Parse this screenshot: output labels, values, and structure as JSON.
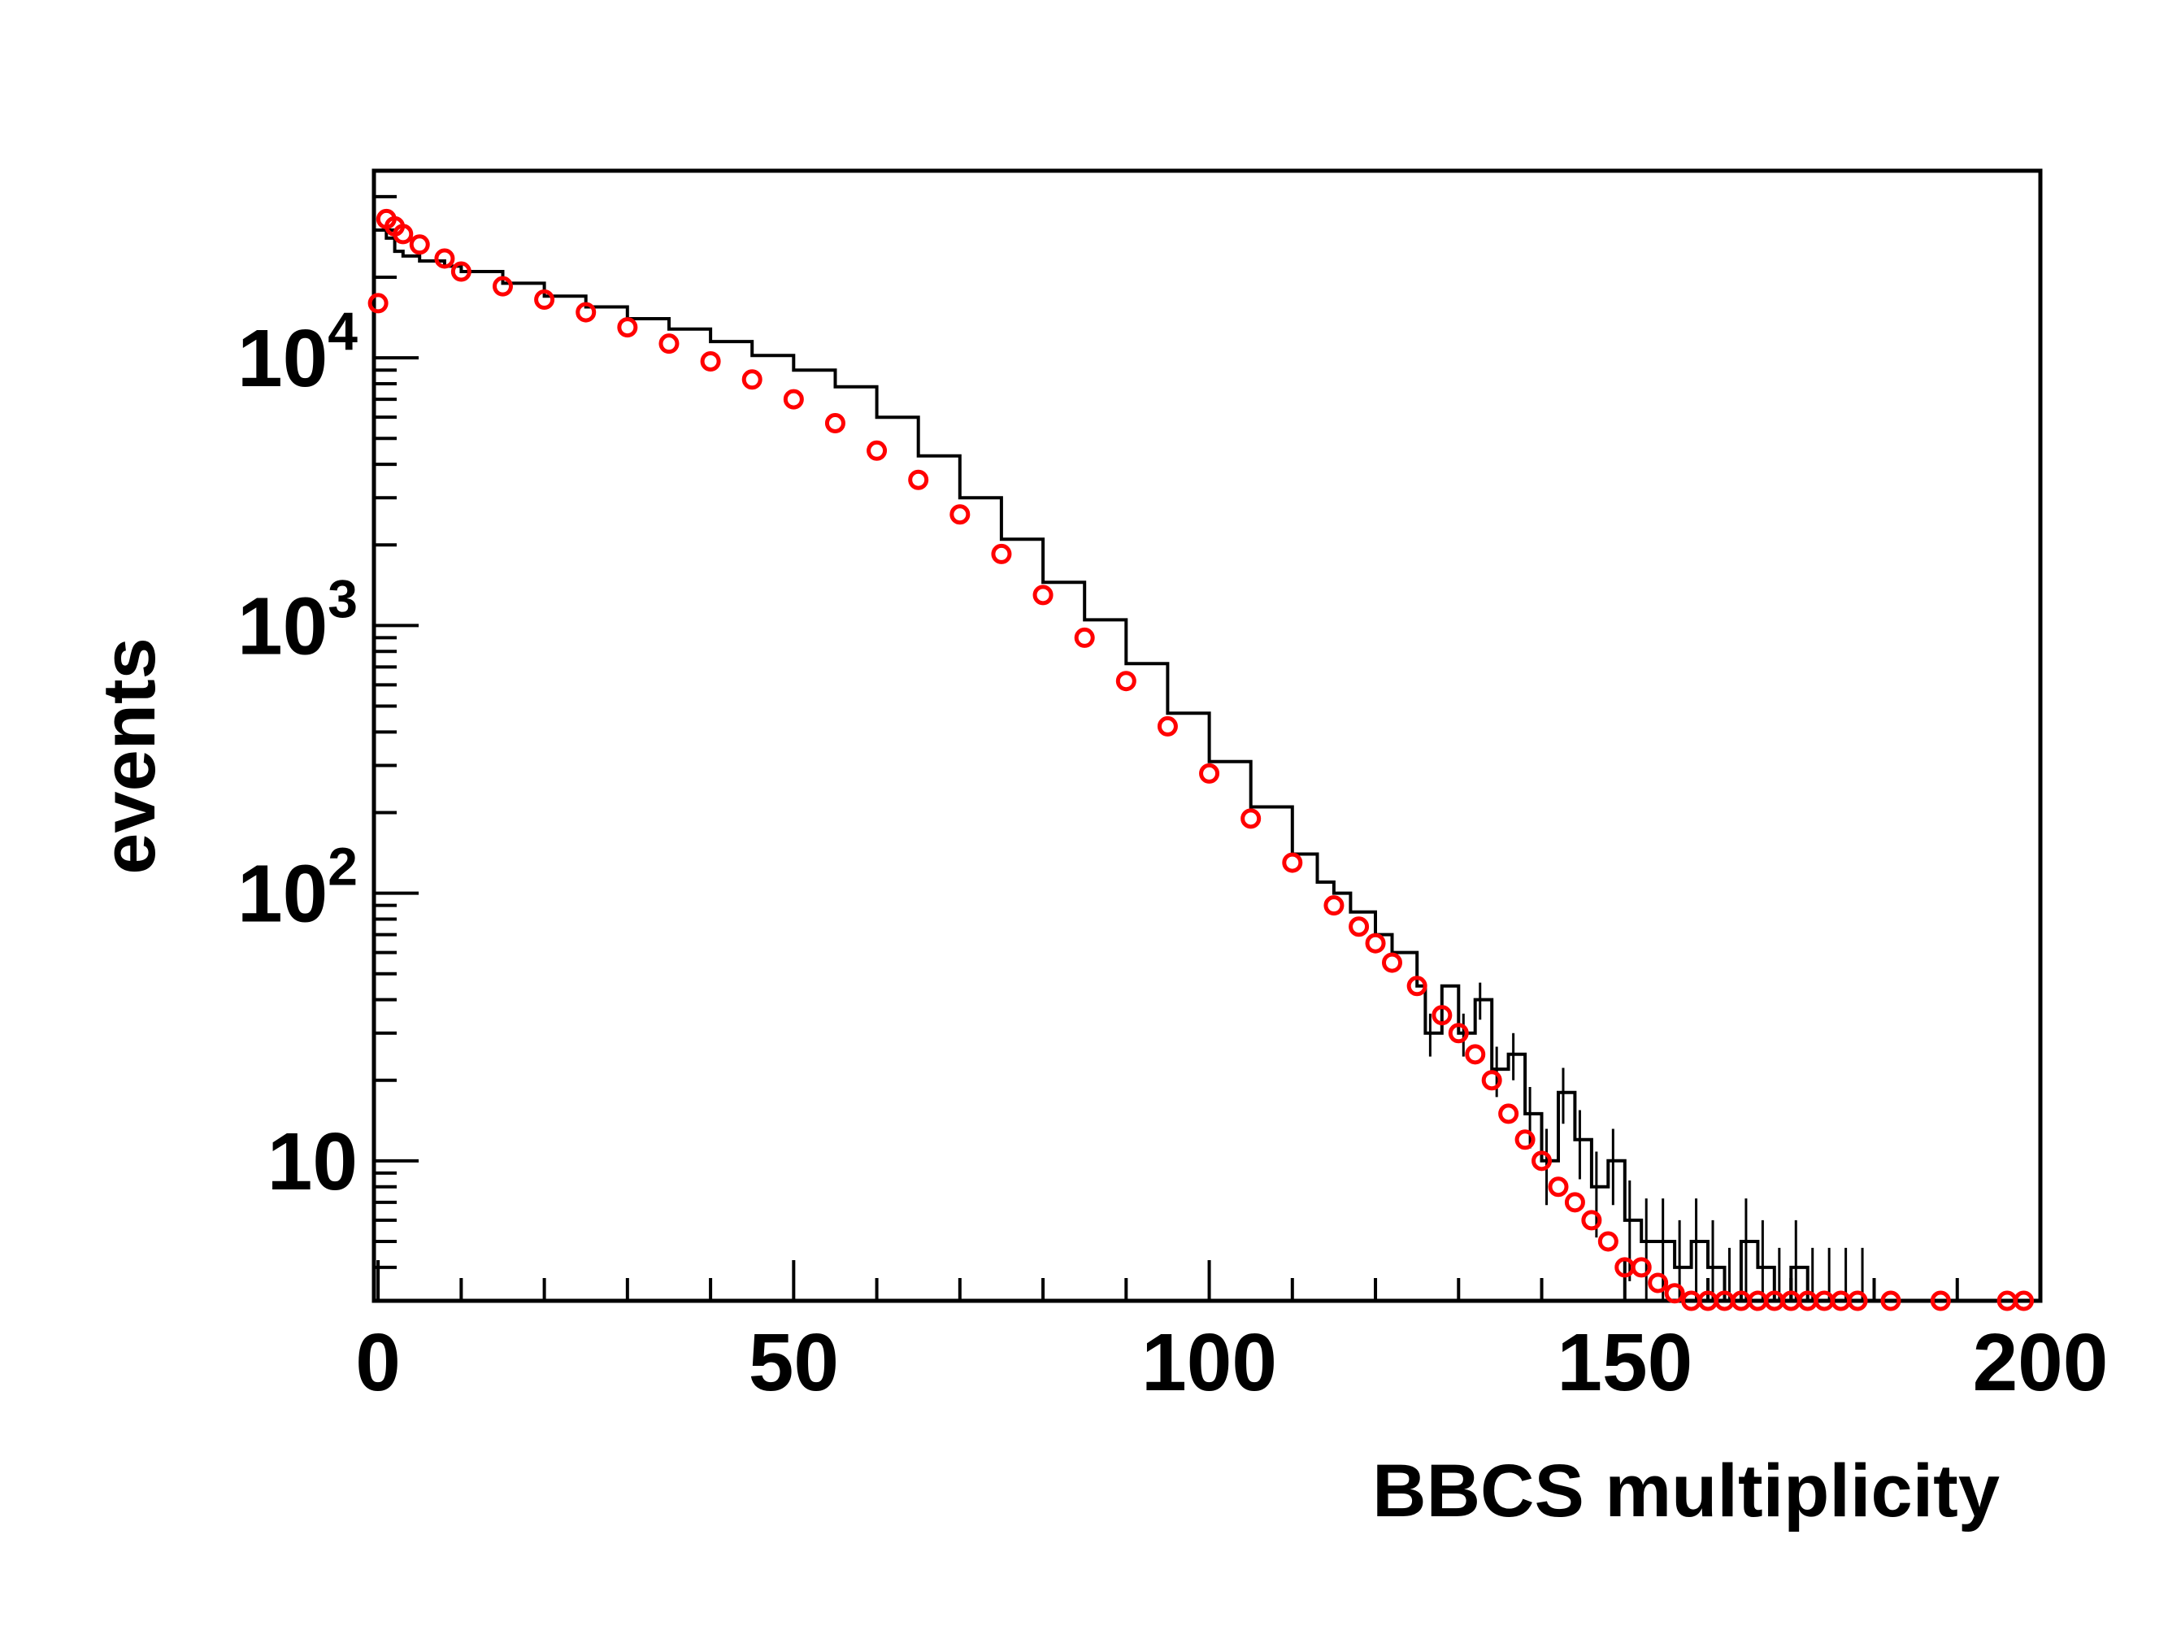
{
  "chart_data": {
    "type": "histogram",
    "xlabel": "BBCS multiplicity",
    "ylabel": "events",
    "xlim": [
      -0.5,
      200
    ],
    "ylim": [
      3,
      50000
    ],
    "yscale": "log",
    "grid": false,
    "x_ticks": [
      {
        "value": 0,
        "label": "0"
      },
      {
        "value": 50,
        "label": "50"
      },
      {
        "value": 100,
        "label": "100"
      },
      {
        "value": 150,
        "label": "150"
      },
      {
        "value": 200,
        "label": "200"
      }
    ],
    "y_ticks": [
      {
        "value": 10,
        "base": "10",
        "exp": ""
      },
      {
        "value": 100,
        "base": "10",
        "exp": "2"
      },
      {
        "value": 1000,
        "base": "10",
        "exp": "3"
      },
      {
        "value": 10000,
        "base": "10",
        "exp": "4"
      }
    ],
    "series": [
      {
        "style": "step-line",
        "color": "#000000",
        "x": [
          0,
          1,
          2,
          3,
          5,
          8,
          10,
          15,
          20,
          25,
          30,
          35,
          40,
          45,
          50,
          55,
          60,
          65,
          70,
          75,
          80,
          85,
          90,
          95,
          100,
          105,
          110,
          113,
          115,
          117,
          120,
          122,
          125,
          126,
          128,
          130,
          132,
          134,
          136,
          138,
          140,
          142,
          144,
          146,
          148,
          150,
          152,
          154,
          156,
          158,
          160,
          162,
          164,
          166,
          168,
          170,
          172,
          174,
          176,
          178
        ],
        "values": [
          30000,
          28000,
          25000,
          24000,
          23000,
          22000,
          21000,
          19000,
          17000,
          15500,
          14000,
          12800,
          11500,
          10200,
          9000,
          7800,
          6000,
          4300,
          3000,
          2100,
          1450,
          1050,
          720,
          470,
          310,
          210,
          140,
          110,
          100,
          85,
          70,
          60,
          45,
          30,
          45,
          30,
          40,
          22,
          25,
          15,
          10,
          18,
          12,
          8,
          10,
          6,
          5,
          5,
          4,
          5,
          4,
          3,
          5,
          4,
          3,
          4,
          3,
          3,
          3,
          3
        ]
      },
      {
        "style": "open-circle-markers",
        "color": "#ff0000",
        "x": [
          0,
          1,
          2,
          3,
          5,
          8,
          10,
          15,
          20,
          25,
          30,
          35,
          40,
          45,
          50,
          55,
          60,
          65,
          70,
          75,
          80,
          85,
          90,
          95,
          100,
          105,
          110,
          115,
          118,
          120,
          122,
          125,
          128,
          130,
          132,
          134,
          136,
          138,
          140,
          142,
          144,
          146,
          148,
          150,
          152,
          154,
          156,
          158,
          160,
          162,
          164,
          166,
          168,
          170,
          172,
          174,
          176,
          178,
          182,
          188,
          196,
          198
        ],
        "values": [
          16000,
          33000,
          31000,
          29000,
          26500,
          23500,
          21000,
          18500,
          16500,
          14800,
          13000,
          11300,
          9700,
          8300,
          7000,
          5700,
          4500,
          3500,
          2600,
          1850,
          1300,
          900,
          620,
          420,
          280,
          190,
          130,
          90,
          75,
          65,
          55,
          45,
          35,
          30,
          25,
          20,
          15,
          12,
          10,
          8,
          7,
          6,
          5,
          4,
          4,
          3.5,
          3.2,
          3,
          3,
          3,
          3,
          3,
          3,
          3,
          3,
          3,
          3,
          3,
          3,
          3,
          3,
          3
        ]
      }
    ]
  }
}
